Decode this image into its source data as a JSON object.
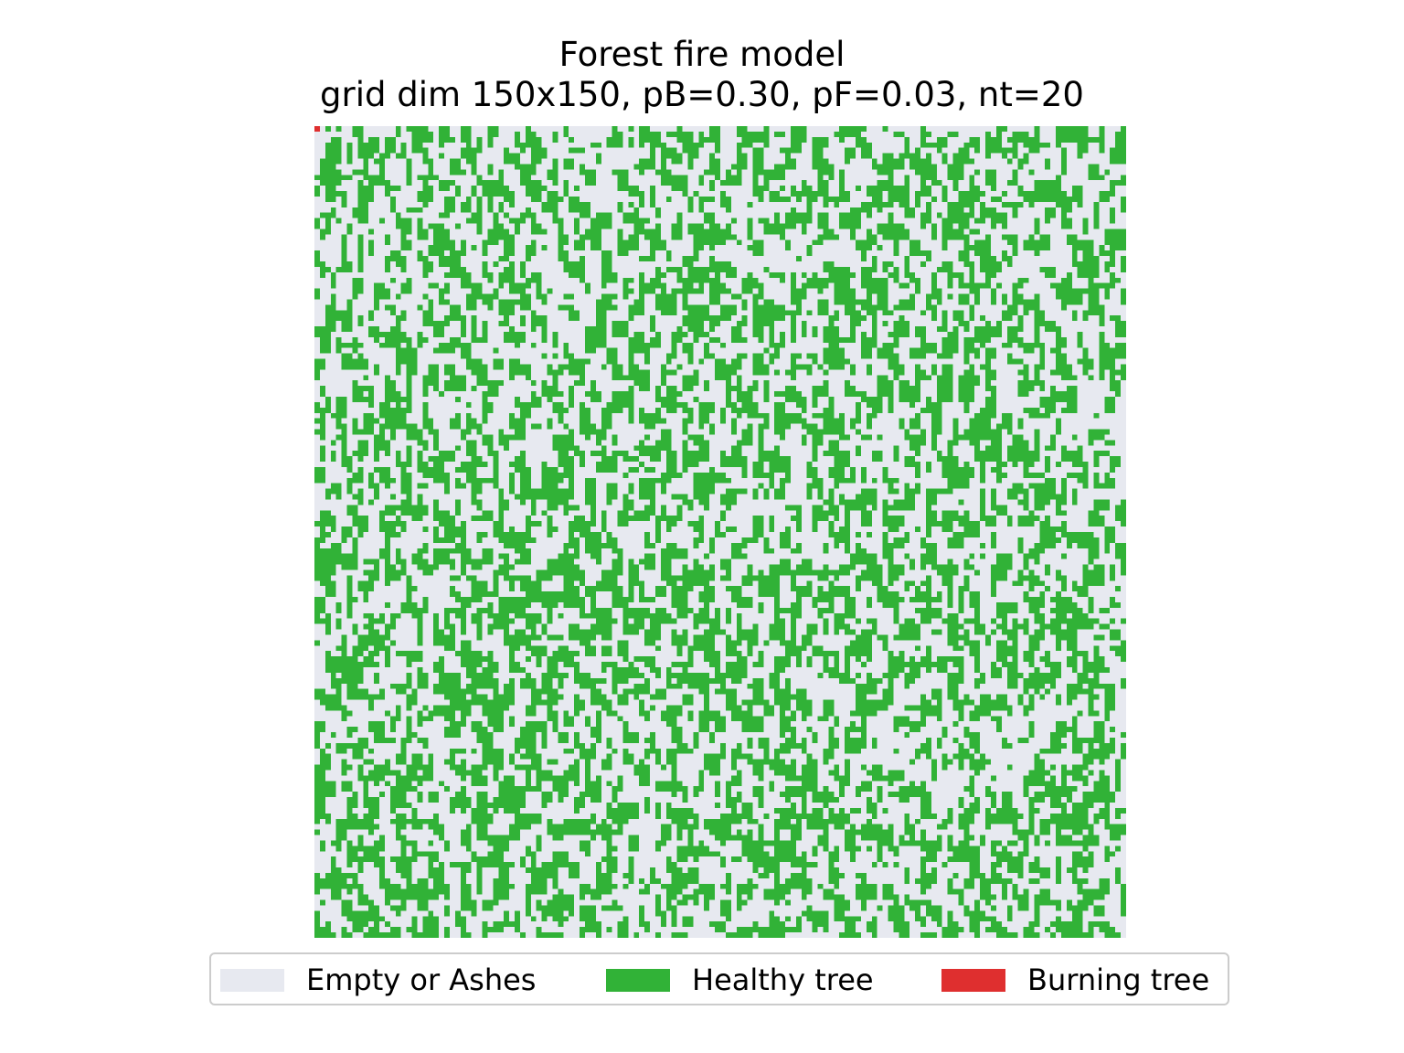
{
  "chart_data": {
    "type": "heatmap",
    "title": [
      "Forest fire model",
      "grid dim 150x150, pB=0.30, pF=0.03, nt=20"
    ],
    "grid": {
      "rows": 150,
      "cols": 150,
      "states": [
        {
          "code": 0,
          "label": "Empty or Ashes",
          "color": "#e7e9f0"
        },
        {
          "code": 1,
          "label": "Healthy tree",
          "color": "#31b237"
        },
        {
          "code": 2,
          "label": "Burning tree",
          "color": "#df2f2f"
        }
      ],
      "tree_density": 0.4,
      "burning_cells": [
        [
          0,
          0
        ]
      ]
    },
    "axes_visible": false,
    "legend_position": "bottom"
  }
}
